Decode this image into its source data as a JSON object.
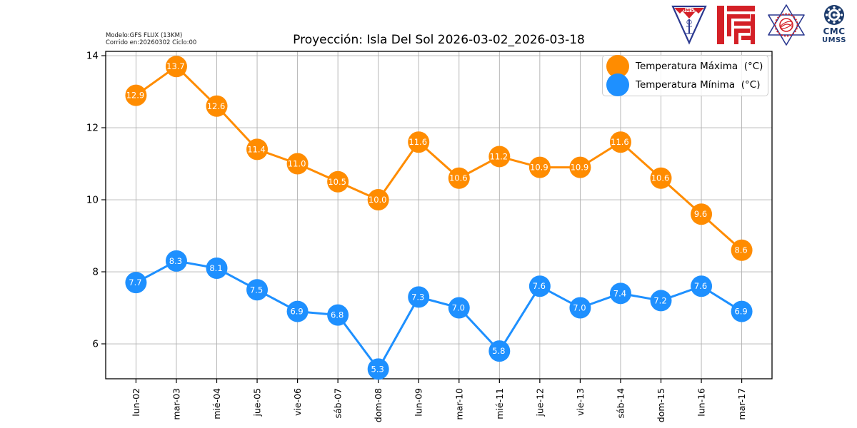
{
  "header": {
    "model_line1": "Modelo:GFS FLUX (13KM)",
    "model_line2": "Corrido en:20260302 Ciclo:00",
    "title": "Proyección: Isla Del Sol 2026-03-02_2026-03-18"
  },
  "logos": {
    "umss_shield_text": "UMSS",
    "cmc_line1": "CMC",
    "cmc_line2": "UMSS",
    "navy": "#1b3a6b",
    "red": "#d42027",
    "blue": "#2b3990"
  },
  "chart_data": {
    "type": "line",
    "title": "Proyección: Isla Del Sol 2026-03-02_2026-03-18",
    "categories": [
      "lun-02",
      "mar-03",
      "mié-04",
      "jue-05",
      "vie-06",
      "sáb-07",
      "dom-08",
      "lun-09",
      "mar-10",
      "mié-11",
      "jue-12",
      "vie-13",
      "sáb-14",
      "dom-15",
      "lun-16",
      "mar-17"
    ],
    "series": [
      {
        "name": "Temperatura Máxima  (°C)",
        "color": "#FF8C00",
        "values": [
          12.9,
          13.7,
          12.6,
          11.4,
          11.0,
          10.5,
          10.0,
          11.6,
          10.6,
          11.2,
          10.9,
          10.9,
          11.6,
          10.6,
          9.6,
          8.6
        ]
      },
      {
        "name": "Temperatura Mínima  (°C)",
        "color": "#1E90FF",
        "values": [
          7.7,
          8.3,
          8.1,
          7.5,
          6.9,
          6.8,
          5.3,
          7.3,
          7.0,
          5.8,
          7.6,
          7.0,
          7.4,
          7.2,
          7.6,
          6.9
        ]
      }
    ],
    "xlabel": "",
    "ylabel": "",
    "yticks": [
      6,
      8,
      10,
      12,
      14
    ],
    "ylim": [
      5.03,
      14.12
    ],
    "grid": true,
    "grid_color": "#b0b0b0",
    "axis_color": "#000000",
    "legend_position": "upper right",
    "value_label_color": "#ffffff"
  }
}
